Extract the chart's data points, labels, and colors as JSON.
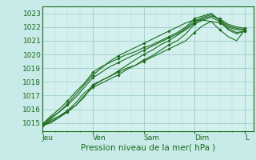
{
  "background_color": "#c8eae8",
  "plot_bg_color": "#d4f0ee",
  "grid_major_color": "#90c8c4",
  "grid_minor_color": "#b0dcd8",
  "line_color": "#1a6b1a",
  "marker_color": "#1a6b1a",
  "ylim": [
    1014.4,
    1023.5
  ],
  "xlim": [
    0,
    100
  ],
  "yticks": [
    1015,
    1016,
    1017,
    1018,
    1019,
    1020,
    1021,
    1022,
    1023
  ],
  "xtick_positions": [
    0,
    24,
    48,
    72,
    96
  ],
  "xtick_labels": [
    "Jeu",
    "Ven",
    "Sam",
    "Dim",
    "L"
  ],
  "xlabel": "Pression niveau de la mer( hPa )",
  "label_fontsize": 6.5,
  "xlabel_fontsize": 7.5,
  "series": [
    [
      0,
      1014.8,
      4,
      1015.2,
      8,
      1015.5,
      12,
      1015.9,
      16,
      1016.3,
      20,
      1016.9,
      24,
      1017.8,
      28,
      1018.1,
      32,
      1018.4,
      36,
      1018.7,
      40,
      1019.0,
      44,
      1019.2,
      48,
      1019.5,
      52,
      1019.8,
      56,
      1020.1,
      60,
      1020.4,
      64,
      1020.7,
      68,
      1021.0,
      72,
      1021.6,
      76,
      1022.1,
      80,
      1022.4,
      84,
      1022.3,
      88,
      1021.9,
      92,
      1021.6,
      96,
      1021.7
    ],
    [
      0,
      1014.8,
      4,
      1015.1,
      8,
      1015.4,
      12,
      1015.8,
      16,
      1016.3,
      20,
      1017.0,
      24,
      1017.6,
      28,
      1017.9,
      32,
      1018.2,
      36,
      1018.5,
      40,
      1018.9,
      44,
      1019.2,
      48,
      1019.6,
      52,
      1019.9,
      56,
      1020.3,
      60,
      1020.7,
      64,
      1021.0,
      68,
      1021.5,
      72,
      1022.2,
      76,
      1022.5,
      80,
      1022.7,
      84,
      1022.4,
      88,
      1022.0,
      92,
      1021.8,
      96,
      1021.8
    ],
    [
      0,
      1014.9,
      4,
      1015.4,
      8,
      1015.8,
      12,
      1016.3,
      16,
      1016.9,
      20,
      1017.6,
      24,
      1018.3,
      28,
      1018.7,
      32,
      1019.1,
      36,
      1019.4,
      40,
      1019.7,
      44,
      1020.0,
      48,
      1020.3,
      52,
      1020.6,
      56,
      1020.9,
      60,
      1021.2,
      64,
      1021.5,
      68,
      1021.9,
      72,
      1022.4,
      76,
      1022.7,
      80,
      1022.9,
      84,
      1022.5,
      88,
      1022.1,
      92,
      1021.9,
      96,
      1021.8
    ],
    [
      0,
      1014.9,
      4,
      1015.5,
      8,
      1016.0,
      12,
      1016.6,
      16,
      1017.3,
      20,
      1017.9,
      24,
      1018.7,
      28,
      1019.1,
      32,
      1019.4,
      36,
      1019.7,
      40,
      1020.0,
      44,
      1020.2,
      48,
      1020.5,
      52,
      1020.7,
      56,
      1021.0,
      60,
      1021.3,
      64,
      1021.6,
      68,
      1022.0,
      72,
      1022.6,
      76,
      1022.8,
      80,
      1023.0,
      84,
      1022.5,
      88,
      1021.8,
      92,
      1021.5,
      96,
      1021.7
    ],
    [
      0,
      1014.8,
      4,
      1015.3,
      8,
      1015.8,
      12,
      1016.4,
      16,
      1017.1,
      20,
      1017.8,
      24,
      1018.5,
      28,
      1019.0,
      32,
      1019.5,
      36,
      1019.9,
      40,
      1020.2,
      44,
      1020.5,
      48,
      1020.8,
      52,
      1021.1,
      56,
      1021.4,
      60,
      1021.7,
      64,
      1022.0,
      68,
      1022.3,
      72,
      1022.5,
      76,
      1022.5,
      80,
      1022.4,
      84,
      1021.8,
      88,
      1021.3,
      92,
      1021.0,
      96,
      1021.8
    ],
    [
      0,
      1014.8,
      4,
      1015.0,
      8,
      1015.4,
      12,
      1015.9,
      16,
      1016.5,
      20,
      1017.2,
      24,
      1017.7,
      28,
      1018.1,
      32,
      1018.4,
      36,
      1018.8,
      40,
      1019.2,
      44,
      1019.6,
      48,
      1020.0,
      52,
      1020.3,
      56,
      1020.7,
      60,
      1021.0,
      64,
      1021.4,
      68,
      1021.8,
      72,
      1022.3,
      76,
      1022.6,
      80,
      1022.8,
      84,
      1022.6,
      88,
      1022.2,
      92,
      1022.0,
      96,
      1021.9
    ]
  ]
}
